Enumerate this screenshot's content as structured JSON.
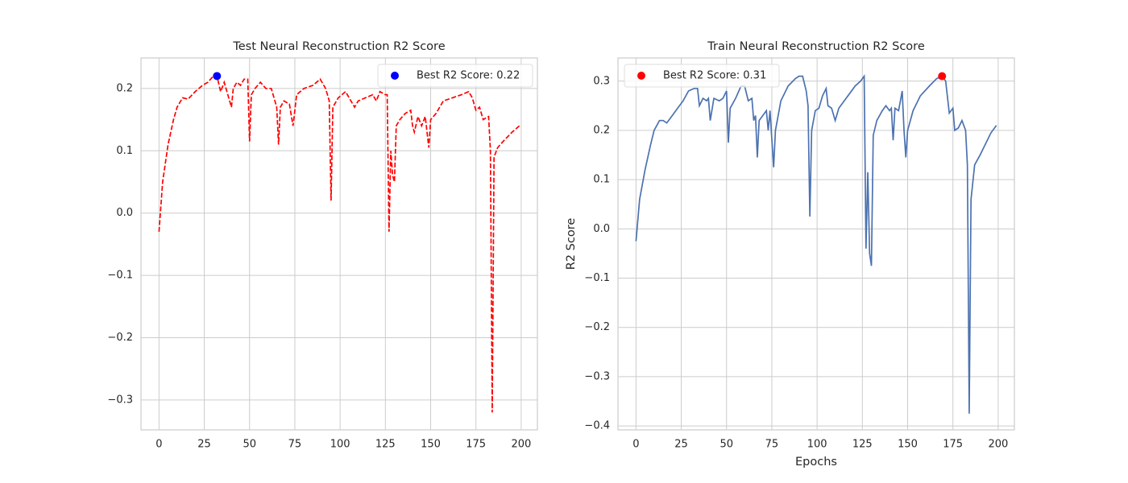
{
  "chart_data": [
    {
      "type": "line",
      "title": "Test Neural Reconstruction R2 Score",
      "x": [
        0,
        2,
        5,
        8,
        10,
        13,
        16,
        20,
        24,
        27,
        30,
        32,
        34,
        36,
        38,
        40,
        41,
        43,
        45,
        47,
        49,
        50,
        51,
        53,
        56,
        59,
        62,
        65,
        66,
        67,
        69,
        72,
        74,
        76,
        80,
        85,
        89,
        92,
        94,
        95,
        96,
        99,
        103,
        106,
        108,
        110,
        114,
        118,
        120,
        122,
        125,
        126,
        127,
        128,
        129,
        130,
        131,
        133,
        136,
        139,
        140,
        141,
        143,
        145,
        147,
        149,
        150,
        153,
        157,
        162,
        167,
        171,
        173,
        175,
        177,
        179,
        182,
        183,
        184,
        185,
        187,
        190,
        195,
        199
      ],
      "series": [
        {
          "color": "#ff0000",
          "dash": true,
          "values": [
            -0.03,
            0.05,
            0.11,
            0.15,
            0.17,
            0.185,
            0.183,
            0.195,
            0.205,
            0.21,
            0.22,
            0.22,
            0.195,
            0.21,
            0.19,
            0.17,
            0.2,
            0.21,
            0.205,
            0.215,
            0.215,
            0.115,
            0.19,
            0.2,
            0.21,
            0.2,
            0.2,
            0.17,
            0.11,
            0.17,
            0.18,
            0.175,
            0.14,
            0.19,
            0.2,
            0.205,
            0.215,
            0.2,
            0.18,
            0.02,
            0.17,
            0.185,
            0.195,
            0.18,
            0.17,
            0.18,
            0.185,
            0.19,
            0.18,
            0.195,
            0.19,
            0.19,
            -0.03,
            0.1,
            0.06,
            0.05,
            0.14,
            0.15,
            0.16,
            0.165,
            0.14,
            0.13,
            0.155,
            0.14,
            0.155,
            0.105,
            0.15,
            0.16,
            0.18,
            0.185,
            0.19,
            0.195,
            0.185,
            0.165,
            0.17,
            0.15,
            0.155,
            0.1,
            -0.32,
            0.09,
            0.105,
            0.115,
            0.13,
            0.14
          ]
        }
      ],
      "points": [
        {
          "name": "Best R2 Score: 0.22",
          "color": "#0000ff",
          "x": 32,
          "y": 0.22
        }
      ],
      "legend": "upper right",
      "xlim": [
        -9.95,
        208.95
      ],
      "xticks": [
        0,
        25,
        50,
        75,
        100,
        125,
        150,
        175,
        200
      ],
      "ylim": [
        -0.348,
        0.249
      ],
      "yticks": [
        {
          "value": -0.3,
          "label": "−0.3"
        },
        {
          "value": -0.2,
          "label": "−0.2"
        },
        {
          "value": -0.1,
          "label": "−0.1"
        },
        {
          "value": 0,
          "label": "0.0"
        },
        0.1,
        0.2
      ],
      "grid": true
    },
    {
      "type": "line",
      "title": "Train Neural Reconstruction R2 Score",
      "xlabel": "Epochs",
      "ylabel": "R2 Score",
      "x": [
        0,
        2,
        5,
        8,
        10,
        13,
        15,
        17,
        20,
        23,
        26,
        29,
        32,
        34,
        35,
        37,
        39,
        40,
        41,
        43,
        46,
        48,
        50,
        51,
        52,
        55,
        58,
        60,
        62,
        64,
        65,
        66,
        67,
        68,
        70,
        72,
        73,
        74,
        76,
        77,
        80,
        84,
        88,
        90,
        92,
        94,
        95,
        96,
        97,
        99,
        101,
        103,
        105,
        106,
        108,
        110,
        112,
        115,
        118,
        121,
        124,
        126,
        127,
        128,
        129,
        130,
        131,
        133,
        136,
        138,
        140,
        141,
        142,
        143,
        145,
        147,
        148,
        149,
        150,
        153,
        157,
        162,
        166,
        169,
        171,
        173,
        175,
        176,
        178,
        180,
        182,
        183,
        184,
        185,
        187,
        190,
        192,
        196,
        199
      ],
      "series": [
        {
          "color": "#4c72b0",
          "dash": false,
          "values": [
            -0.025,
            0.06,
            0.12,
            0.17,
            0.2,
            0.22,
            0.22,
            0.215,
            0.23,
            0.245,
            0.26,
            0.28,
            0.285,
            0.285,
            0.25,
            0.265,
            0.26,
            0.265,
            0.22,
            0.265,
            0.26,
            0.265,
            0.28,
            0.175,
            0.245,
            0.265,
            0.29,
            0.29,
            0.26,
            0.265,
            0.22,
            0.23,
            0.145,
            0.22,
            0.23,
            0.24,
            0.2,
            0.24,
            0.125,
            0.2,
            0.26,
            0.29,
            0.305,
            0.31,
            0.31,
            0.28,
            0.25,
            0.025,
            0.2,
            0.24,
            0.245,
            0.27,
            0.285,
            0.25,
            0.245,
            0.22,
            0.245,
            0.26,
            0.275,
            0.29,
            0.3,
            0.31,
            -0.04,
            0.115,
            -0.05,
            -0.075,
            0.19,
            0.22,
            0.24,
            0.25,
            0.24,
            0.245,
            0.18,
            0.245,
            0.24,
            0.28,
            0.2,
            0.145,
            0.2,
            0.24,
            0.27,
            0.29,
            0.305,
            0.31,
            0.3,
            0.235,
            0.245,
            0.2,
            0.205,
            0.22,
            0.2,
            0.13,
            -0.375,
            0.06,
            0.13,
            0.15,
            0.165,
            0.195,
            0.21
          ]
        }
      ],
      "points": [
        {
          "name": "Best R2 Score: 0.31",
          "color": "#ff0000",
          "x": 169,
          "y": 0.31
        }
      ],
      "legend": "upper left",
      "xlim": [
        -9.95,
        208.95
      ],
      "xticks": [
        0,
        25,
        50,
        75,
        100,
        125,
        150,
        175,
        200
      ],
      "ylim": [
        -0.408,
        0.347
      ],
      "yticks": [
        {
          "value": -0.4,
          "label": "−0.4"
        },
        {
          "value": -0.3,
          "label": "−0.3"
        },
        {
          "value": -0.2,
          "label": "−0.2"
        },
        {
          "value": -0.1,
          "label": "−0.1"
        },
        {
          "value": 0,
          "label": "0.0"
        },
        0.1,
        0.2,
        0.3
      ],
      "grid": true
    }
  ]
}
